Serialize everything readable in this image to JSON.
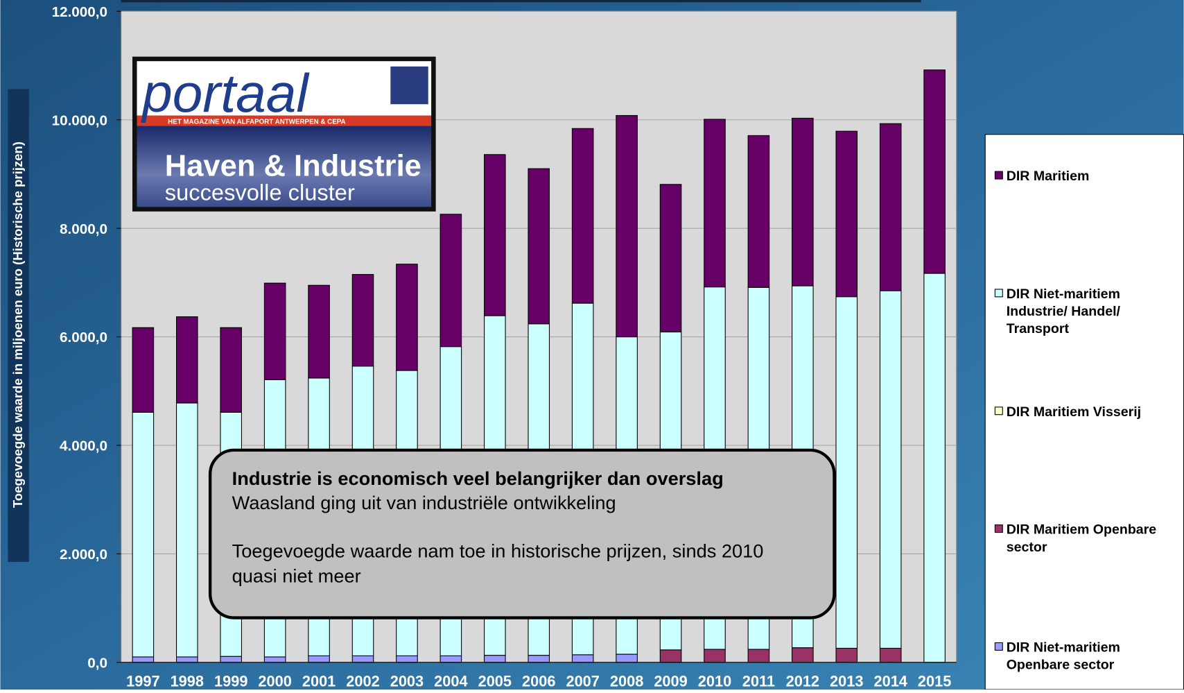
{
  "chart_data": {
    "type": "stacked_bar",
    "y_label": "Toegevoegde waarde in miljoenen euro (Historische prijzen)",
    "categories": [
      "1997",
      "1998",
      "1999",
      "2000",
      "2001",
      "2002",
      "2003",
      "2004",
      "2005",
      "2006",
      "2007",
      "2008",
      "2009",
      "2010",
      "2011",
      "2012",
      "2013",
      "2014",
      "2015"
    ],
    "series": [
      {
        "name": "DIR Niet-maritiem Openbare sector",
        "color": "#9999ff",
        "values": [
          100,
          100,
          110,
          100,
          120,
          120,
          120,
          120,
          130,
          130,
          140,
          150,
          0,
          0,
          0,
          0,
          0,
          0,
          0
        ]
      },
      {
        "name": "DIR Maritiem Openbare sector",
        "color": "#993366",
        "values": [
          0,
          0,
          0,
          0,
          0,
          0,
          0,
          0,
          0,
          0,
          0,
          0,
          230,
          240,
          240,
          270,
          260,
          260,
          0
        ]
      },
      {
        "name": "DIR Maritiem Visserij",
        "color": "#ffffcc",
        "values": [
          0,
          0,
          0,
          0,
          0,
          0,
          0,
          0,
          0,
          0,
          0,
          0,
          0,
          0,
          0,
          0,
          0,
          0,
          0
        ]
      },
      {
        "name": "DIR Niet-maritiem Industrie/ Handel/ Transport",
        "color": "#ccffff",
        "values": [
          4510,
          4680,
          4500,
          5110,
          5120,
          5340,
          5260,
          5700,
          6260,
          6110,
          6480,
          5850,
          5860,
          6680,
          6670,
          6670,
          6480,
          6590,
          7170
        ]
      },
      {
        "name": "DIR Maritiem",
        "color": "#660066",
        "values": [
          1560,
          1590,
          1560,
          1780,
          1710,
          1690,
          1960,
          2440,
          2970,
          2860,
          3220,
          4080,
          2720,
          3090,
          2800,
          3090,
          3050,
          3080,
          3750
        ]
      }
    ],
    "ylim": [
      0,
      12000
    ],
    "yticks": [
      {
        "value": 0,
        "label": "0,0"
      },
      {
        "value": 2000,
        "label": "2.000,0"
      },
      {
        "value": 4000,
        "label": "4.000,0"
      },
      {
        "value": 6000,
        "label": "6.000,0"
      },
      {
        "value": 8000,
        "label": "8.000,0"
      },
      {
        "value": 10000,
        "label": "10.000,0"
      },
      {
        "value": 12000,
        "label": "12.000,0"
      }
    ],
    "grid": true,
    "legend": "right"
  },
  "magazine": {
    "title": "portaal",
    "tagline": "HET MAGAZINE VAN ALFAPORT ANTWERPEN & CEPA",
    "headline": "Haven & Industrie",
    "subheadline": "succesvolle cluster"
  },
  "callout": {
    "heading": "Industrie is economisch veel belangrijker dan overslag",
    "line1": "Waasland ging uit van industriële ontwikkeling",
    "line2": "Toegevoegde waarde nam toe in historische prijzen, sinds 2010",
    "line3": "quasi niet meer"
  }
}
